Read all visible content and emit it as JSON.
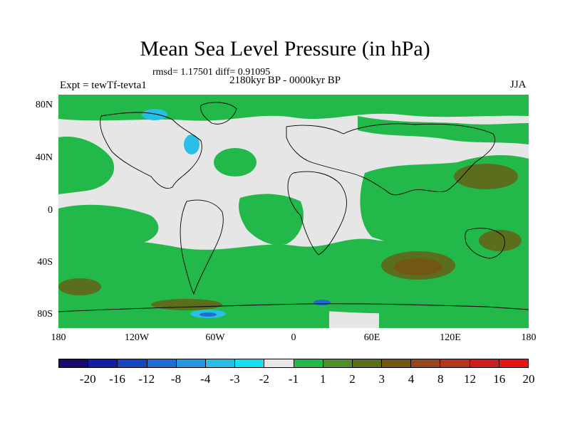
{
  "title": "Mean Sea Level Pressure (in hPa)",
  "stats": "rmsd= 1.17501 diff= 0.91095",
  "experiment": "Expt = tewTf-tevta1",
  "period": "2180kyr BP - 0000kyr BP",
  "season": "JJA",
  "lat_labels": [
    "80N",
    "40N",
    "0",
    "40S",
    "80S"
  ],
  "lon_labels": [
    "180",
    "120W",
    "60W",
    "0",
    "60E",
    "120E",
    "180"
  ],
  "colorbar": {
    "colors": [
      "#1a0a6e",
      "#141ea0",
      "#1446be",
      "#1e6ed2",
      "#2896dc",
      "#28bee6",
      "#14e1f0",
      "#e6e6e6",
      "#22b84a",
      "#4f8f2a",
      "#5b6e1e",
      "#735514",
      "#96461e",
      "#b4361e",
      "#cc1e1e",
      "#e61414"
    ],
    "labels": [
      "-20",
      "-16",
      "-12",
      "-8",
      "-4",
      "-3",
      "-2",
      "-1",
      "1",
      "2",
      "3",
      "4",
      "8",
      "12",
      "16",
      "20"
    ]
  },
  "palette": {
    "neutral": "#e6e6e6",
    "green": "#22b84a",
    "olive": "#5b6e1e",
    "brown": "#735514",
    "cyan": "#28bee6",
    "blue": "#1e6ed2"
  }
}
